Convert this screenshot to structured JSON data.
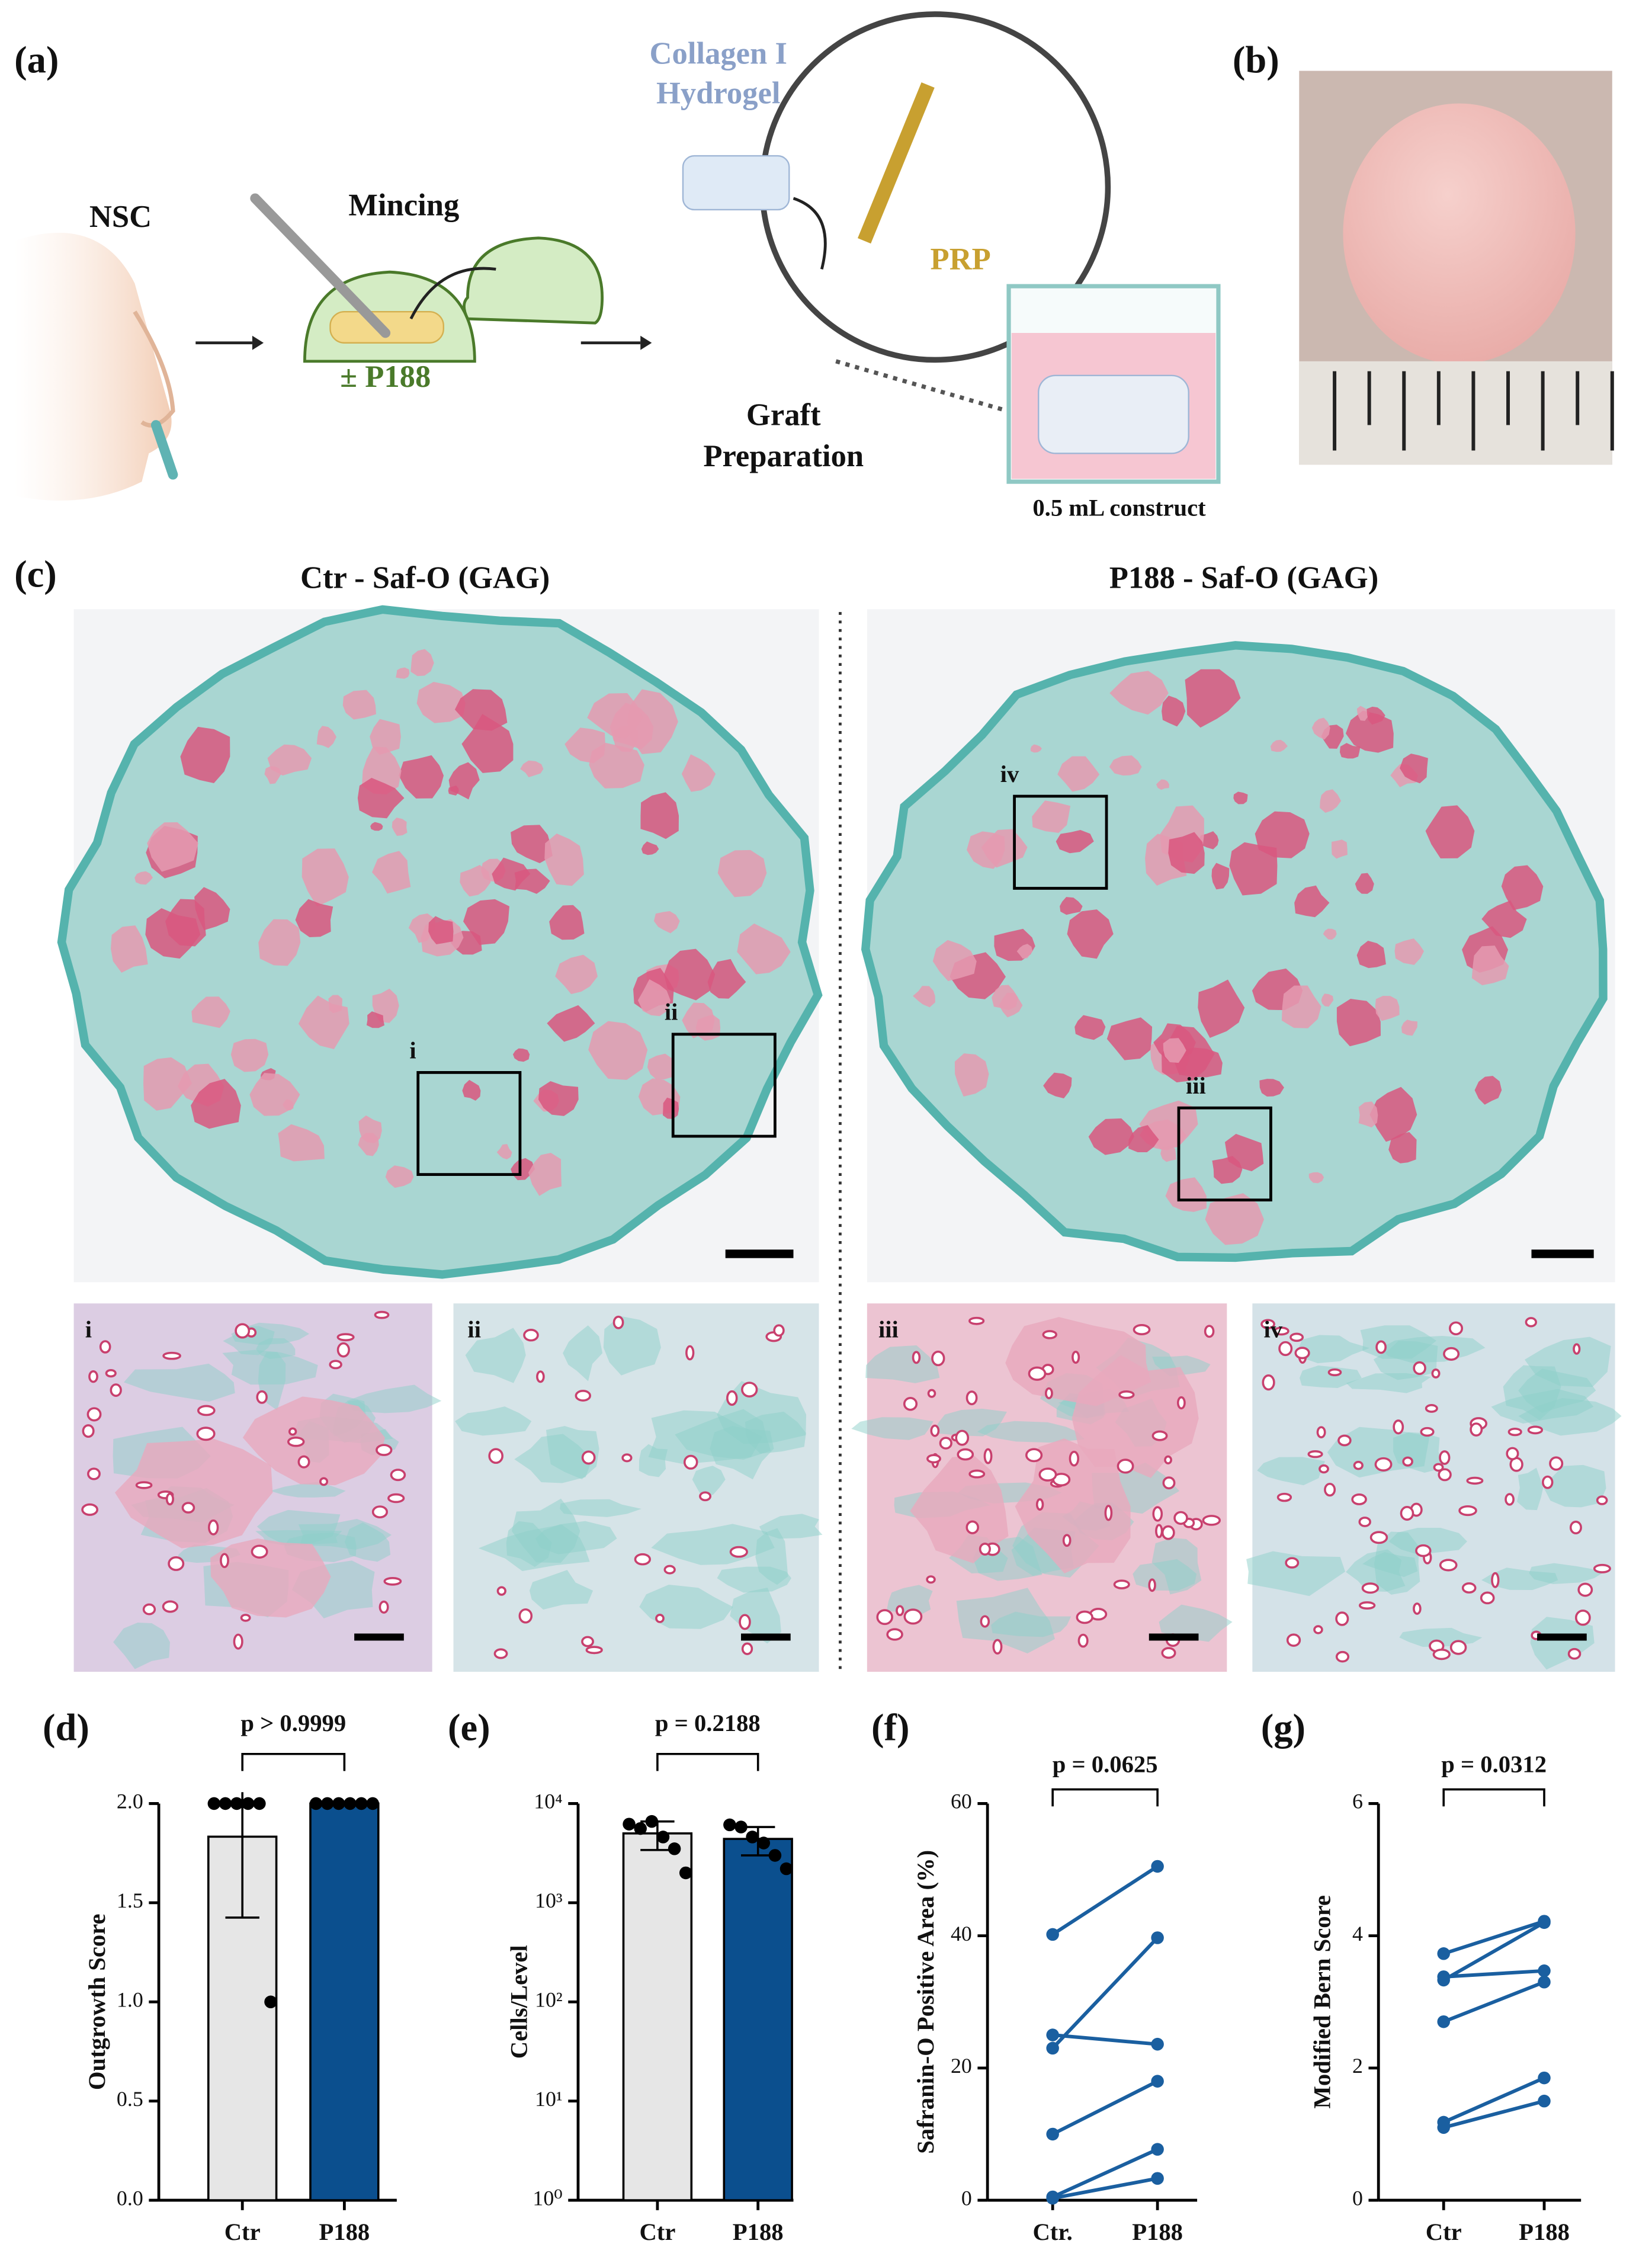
{
  "figure": {
    "a": {
      "label": "(a)",
      "nsc": "NSC",
      "mincing": "Mincing",
      "p188": "± P188",
      "hydrogel": [
        "Collagen I",
        "Hydrogel"
      ],
      "prp": "PRP",
      "graft": [
        "Graft",
        "Preparation"
      ],
      "construct": "0.5 mL construct"
    },
    "b": {
      "label": "(b)"
    },
    "c": {
      "label": "(c)",
      "titles": [
        "Ctr - Saf-O (GAG)",
        "P188 - Saf-O (GAG)"
      ],
      "regions": [
        "i",
        "ii",
        "iii",
        "iv"
      ]
    }
  },
  "chart_data": [
    {
      "type": "bar",
      "label": "(d)",
      "ylabel": "Outgrowth Score",
      "annotation": "p > 0.9999",
      "categories": [
        "Ctr",
        "P188"
      ],
      "values": [
        1.833,
        2
      ],
      "errors": [
        0.408,
        0
      ],
      "points": [
        [
          2,
          2,
          2,
          2,
          2,
          1
        ],
        [
          2,
          2,
          2,
          2,
          2,
          2
        ]
      ],
      "colors": [
        "#e6e6e6",
        "#0b4f8e"
      ],
      "ylim": [
        0,
        2
      ],
      "yticks": [
        {
          "value": 0,
          "label": "0.0"
        },
        0.5,
        {
          "value": 1,
          "label": "1.0"
        },
        1.5,
        {
          "value": 2,
          "label": "2.0"
        }
      ]
    },
    {
      "type": "bar",
      "label": "(e)",
      "ylabel": "Cells/Level",
      "annotation": "p = 0.2188",
      "log": true,
      "categories": [
        "Ctr",
        "P188"
      ],
      "values": [
        5000,
        4400
      ],
      "errors": [
        1600,
        1400
      ],
      "points": [
        [
          6200,
          5600,
          6600,
          4600,
          3500,
          2000
        ],
        [
          6100,
          5800,
          4600,
          4000,
          3000,
          2200
        ]
      ],
      "colors": [
        "#e6e6e6",
        "#0b4f8e"
      ],
      "ylim": [
        1,
        10000
      ],
      "yticks": [
        {
          "value": 1,
          "label": "10⁰"
        },
        {
          "value": 10,
          "label": "10¹"
        },
        {
          "value": 100,
          "label": "10²"
        },
        {
          "value": 1000,
          "label": "10³"
        },
        {
          "value": 10000,
          "label": "10⁴"
        }
      ]
    },
    {
      "type": "line",
      "label": "(f)",
      "ylabel": "Safranin-O Positive Area (%)",
      "annotation": "p = 0.0625",
      "categories": [
        "Ctr.",
        "P188"
      ],
      "color": "#1a5fa0",
      "ylim": [
        0,
        60
      ],
      "yticks": [
        0,
        20,
        40,
        60
      ],
      "series": [
        {
          "values": [
            40.2,
            50.5
          ]
        },
        {
          "values": [
            25,
            23.6
          ]
        },
        {
          "values": [
            23,
            39.7
          ]
        },
        {
          "values": [
            10,
            18
          ]
        },
        {
          "values": [
            0.5,
            7.7
          ]
        },
        {
          "values": [
            0.3,
            3.3
          ]
        }
      ]
    },
    {
      "type": "line",
      "label": "(g)",
      "ylabel": "Modified Bern Score",
      "annotation": "p = 0.0312",
      "categories": [
        "Ctr",
        "P188"
      ],
      "color": "#1a5fa0",
      "ylim": [
        0,
        6
      ],
      "yticks": [
        0,
        2,
        4,
        6
      ],
      "series": [
        {
          "values": [
            3.73,
            4.22
          ]
        },
        {
          "values": [
            3.38,
            3.47
          ]
        },
        {
          "values": [
            3.33,
            4.2
          ]
        },
        {
          "values": [
            2.7,
            3.3
          ]
        },
        {
          "values": [
            1.18,
            1.85
          ]
        },
        {
          "values": [
            1.1,
            1.5
          ]
        }
      ]
    }
  ]
}
